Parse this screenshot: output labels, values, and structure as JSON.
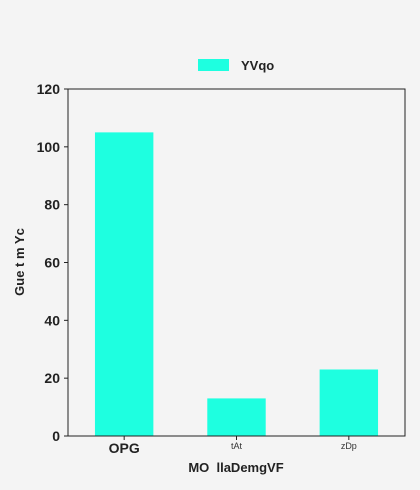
{
  "chart_data": {
    "type": "bar",
    "categories": [
      "OPG",
      "tAt",
      "zDp"
    ],
    "series": [
      {
        "name": "YVqo",
        "values": [
          105,
          13,
          23
        ]
      }
    ],
    "xlabel": "MO  llaDemgVF",
    "ylabel": "Gue t m Yc",
    "ylim": [
      0,
      120
    ],
    "yticks": [
      0,
      20,
      40,
      60,
      80,
      100,
      120
    ],
    "bar_color": "#1effe0",
    "grid": false,
    "legend_position": "top"
  }
}
